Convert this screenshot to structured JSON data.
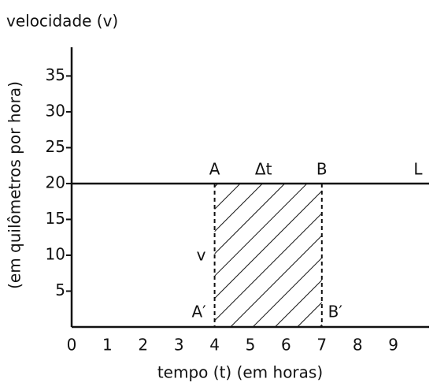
{
  "chart_data": {
    "type": "line",
    "title": "velocidade (v)",
    "y_label": "(em quilômetros por hora)",
    "x_label": "tempo (t) (em horas)",
    "x": [
      0,
      10
    ],
    "series": [
      {
        "name": "L",
        "color": "#111111",
        "values": [
          20,
          20
        ]
      }
    ],
    "interval": [
      4,
      7
    ],
    "annotations": [
      "A",
      "Δt",
      "B",
      "v",
      "A′",
      "B′"
    ],
    "xlim": [
      0,
      10
    ],
    "ylim": [
      0,
      39
    ],
    "xticks": [
      0,
      1,
      2,
      3,
      4,
      5,
      6,
      7,
      8,
      9
    ],
    "yticks": [
      5,
      10,
      15,
      20,
      25,
      30,
      35
    ],
    "grid": false
  }
}
